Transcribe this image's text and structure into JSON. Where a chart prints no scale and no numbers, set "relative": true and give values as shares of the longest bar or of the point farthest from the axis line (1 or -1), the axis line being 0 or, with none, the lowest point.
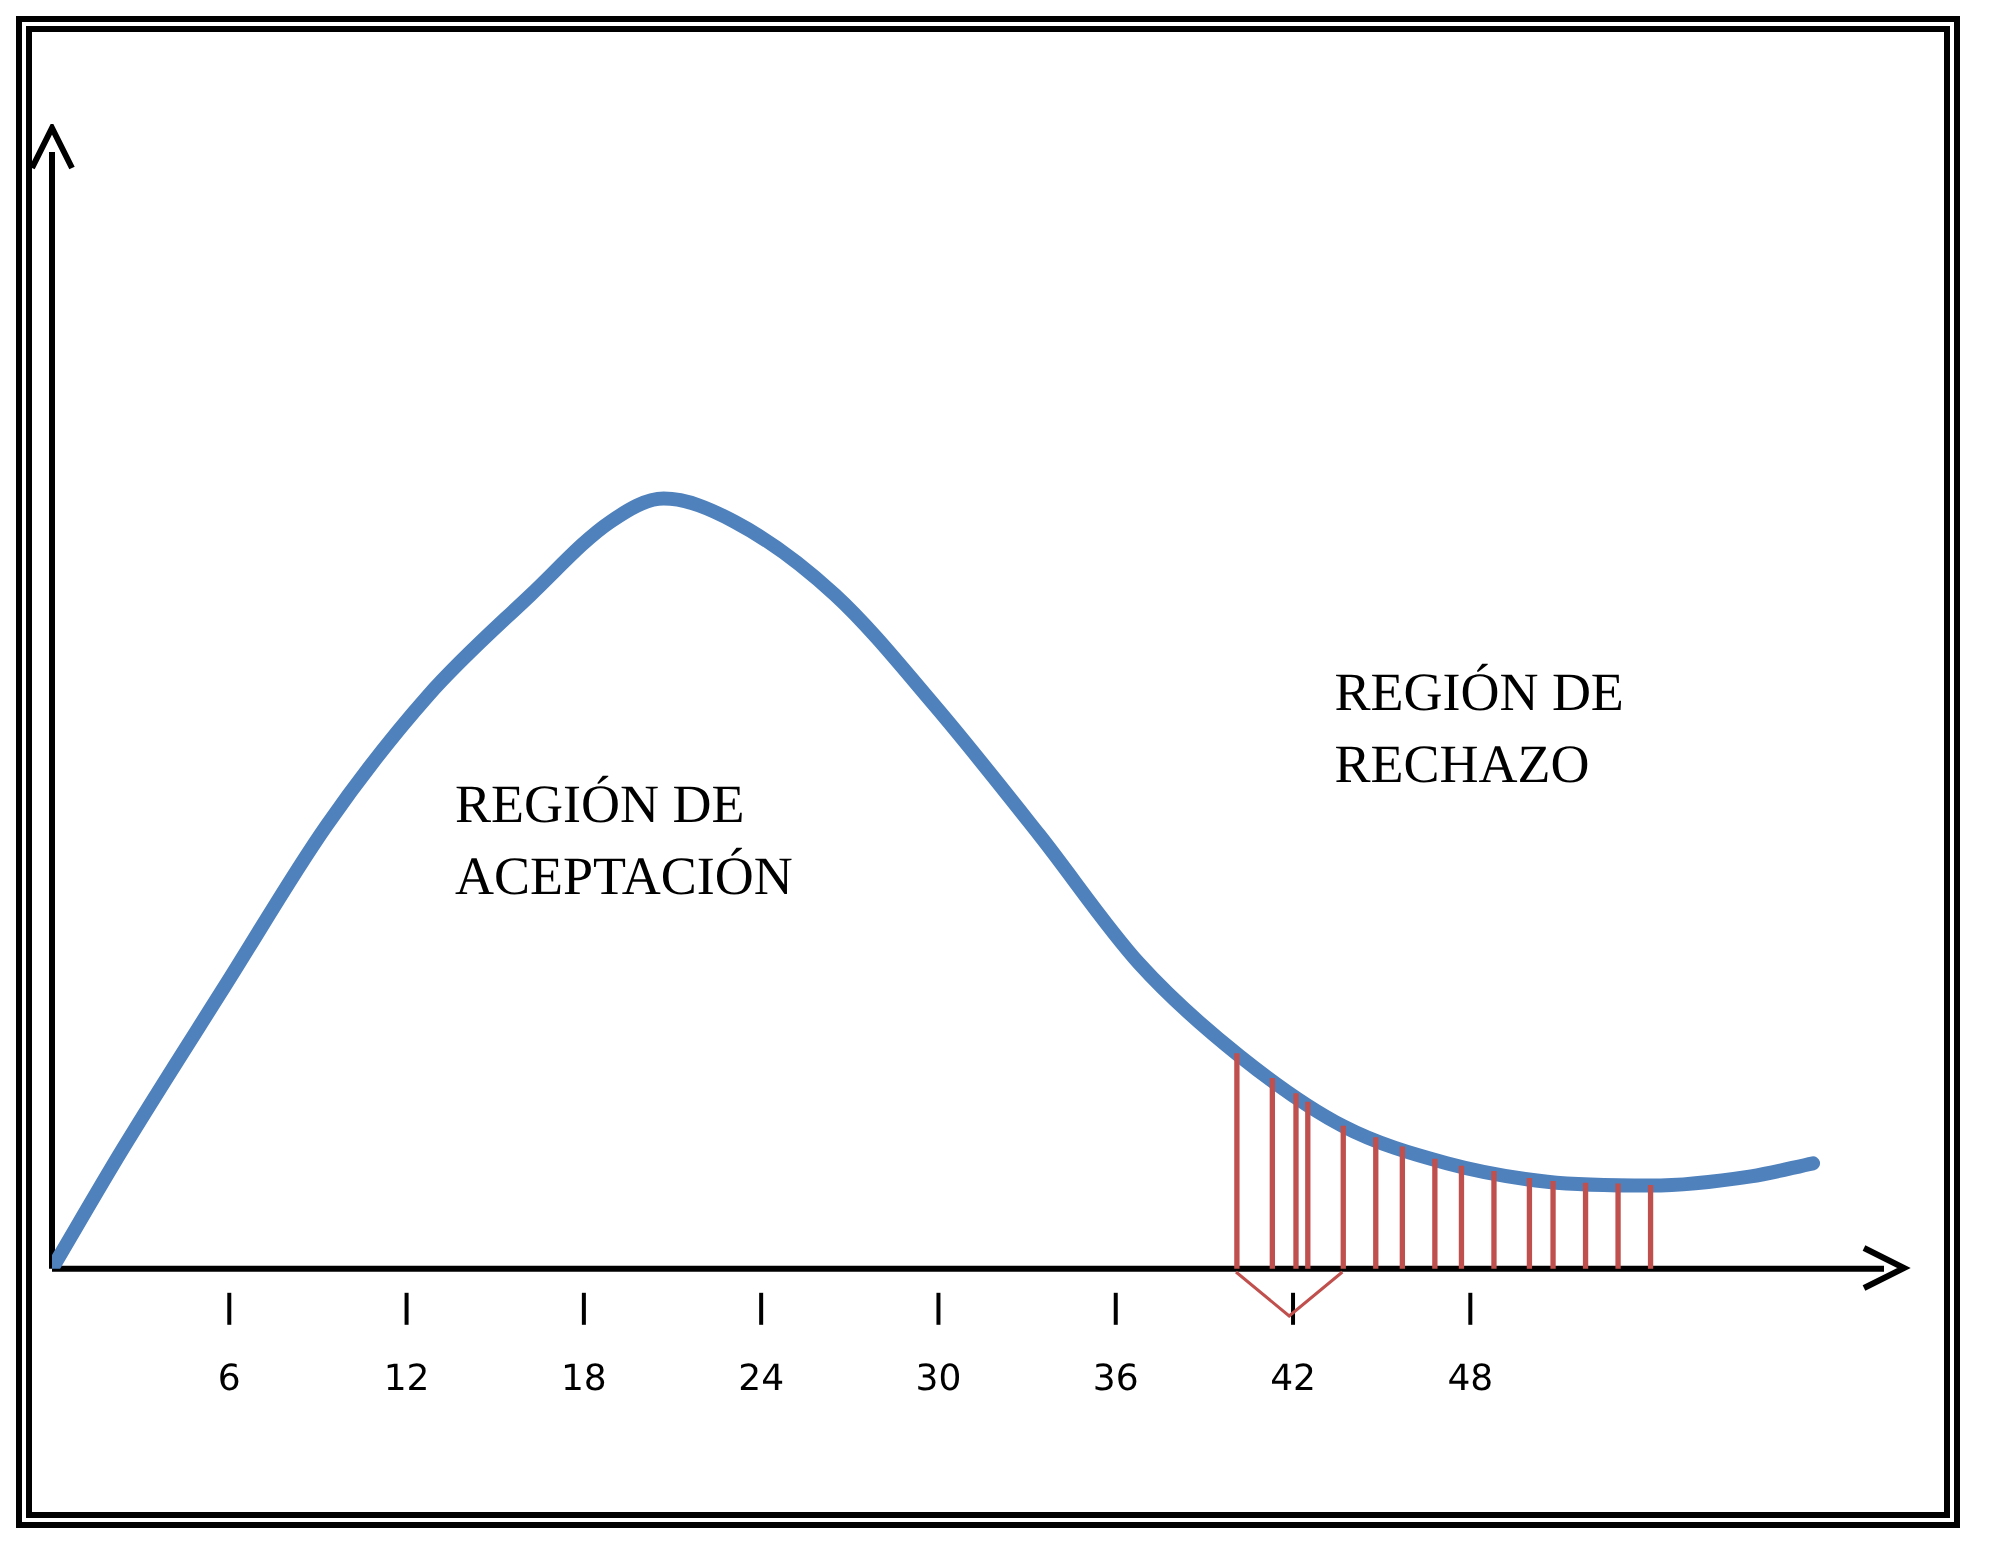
{
  "chart_data": {
    "type": "line",
    "relative": true,
    "x": [
      0,
      2.4,
      5.9,
      9.3,
      12.7,
      16.2,
      18.9,
      20.7,
      23.1,
      26.5,
      29.9,
      33.4,
      36.8,
      40.2,
      43.7,
      47.2,
      50.6,
      54.1,
      57.5,
      59.6
    ],
    "series": [
      {
        "color": "#4f81bd",
        "values": [
          0,
          0.156,
          0.37,
          0.576,
          0.743,
          0.875,
          0.97,
          1,
          0.97,
          0.875,
          0.73,
          0.564,
          0.396,
          0.276,
          0.185,
          0.137,
          0.113,
          0.108,
          0.12,
          0.137
        ]
      },
      {
        "type": "bar",
        "color": "#c0504d",
        "x": [
          40.1,
          41.3,
          42.1,
          42.5,
          43.7,
          44.8,
          45.7,
          46.8,
          47.7,
          48.8,
          50.0,
          50.8,
          51.9,
          53.0,
          54.1
        ],
        "values": [
          0.279,
          0.247,
          0.227,
          0.216,
          0.185,
          0.17,
          0.158,
          0.142,
          0.133,
          0.126,
          0.117,
          0.113,
          0.111,
          0.11,
          0.108
        ]
      }
    ],
    "xlim": [
      0,
      62
    ],
    "xticks": [
      6,
      12,
      18,
      24,
      30,
      36,
      42,
      48
    ],
    "grid": false,
    "legend": false,
    "marker": "none",
    "line_style": "solid",
    "annotations": [
      "REGIÓN DE\nACEPTACIÓN",
      "REGIÓN DE\nRECHAZO"
    ]
  }
}
